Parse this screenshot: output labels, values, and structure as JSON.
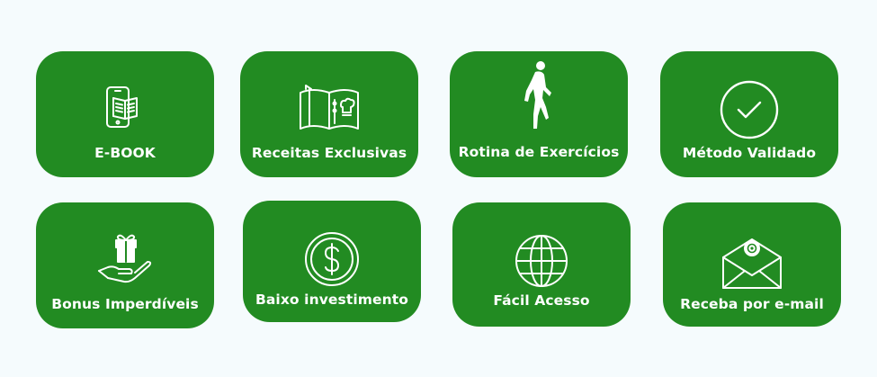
{
  "colors": {
    "background": "#f5fbfd",
    "card": "#228b22",
    "text": "#ffffff"
  },
  "features": [
    {
      "label": "E-BOOK",
      "icon": "ebook-phone-icon"
    },
    {
      "label": "Receitas Exclusivas",
      "icon": "recipe-book-icon"
    },
    {
      "label": "Rotina de Exercícios",
      "icon": "running-person-icon"
    },
    {
      "label": "Método Validado",
      "icon": "check-circle-icon"
    },
    {
      "label": "Bonus Imperdíveis",
      "icon": "gift-hand-icon"
    },
    {
      "label": "Baixo investimento",
      "icon": "dollar-coin-icon"
    },
    {
      "label": "Fácil Acesso",
      "icon": "globe-icon"
    },
    {
      "label": "Receba por e-mail",
      "icon": "email-envelope-icon"
    }
  ]
}
